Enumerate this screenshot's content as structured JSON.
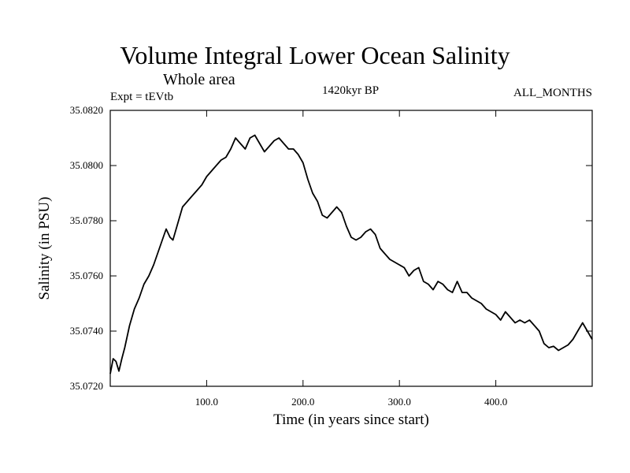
{
  "header": {
    "title": "Volume Integral Lower Ocean Salinity",
    "subtitle": "Whole area",
    "experiment": "Expt = tEVtb",
    "period": "1420kyr BP",
    "season": "ALL_MONTHS"
  },
  "chart_data": {
    "type": "line",
    "title": "Volume Integral Lower Ocean Salinity",
    "xlabel": "Time (in years since start)",
    "ylabel": "Salinity (in PSU)",
    "xlim": [
      0,
      500
    ],
    "ylim": [
      35.072,
      35.082
    ],
    "x_ticks": [
      100,
      200,
      300,
      400
    ],
    "x_tick_labels": [
      "100.0",
      "200.0",
      "300.0",
      "400.0"
    ],
    "y_ticks": [
      35.072,
      35.074,
      35.076,
      35.078,
      35.08,
      35.082
    ],
    "y_tick_labels": [
      "35.0720",
      "35.0740",
      "35.0760",
      "35.0780",
      "35.0800",
      "35.0820"
    ],
    "grid": false,
    "series": [
      {
        "name": "Salinity",
        "x": [
          0,
          3,
          6,
          9,
          12,
          15,
          20,
          25,
          30,
          35,
          40,
          45,
          50,
          55,
          58,
          62,
          65,
          70,
          75,
          80,
          85,
          90,
          95,
          100,
          105,
          110,
          115,
          120,
          125,
          130,
          135,
          140,
          145,
          150,
          155,
          160,
          165,
          170,
          175,
          180,
          185,
          190,
          195,
          200,
          205,
          210,
          215,
          220,
          225,
          230,
          235,
          240,
          245,
          250,
          255,
          260,
          265,
          270,
          275,
          280,
          285,
          290,
          295,
          300,
          305,
          310,
          315,
          320,
          325,
          330,
          335,
          340,
          345,
          350,
          355,
          360,
          365,
          370,
          375,
          380,
          385,
          390,
          395,
          400,
          405,
          410,
          415,
          420,
          425,
          430,
          435,
          440,
          445,
          450,
          455,
          460,
          465,
          470,
          475,
          480,
          485,
          490,
          495,
          500
        ],
        "values": [
          35.07245,
          35.073,
          35.0729,
          35.07255,
          35.073,
          35.0734,
          35.0742,
          35.0748,
          35.0752,
          35.0757,
          35.076,
          35.0764,
          35.0769,
          35.0774,
          35.0777,
          35.0774,
          35.0773,
          35.0779,
          35.0785,
          35.0787,
          35.0789,
          35.0791,
          35.0793,
          35.0796,
          35.0798,
          35.08,
          35.0802,
          35.0803,
          35.0806,
          35.081,
          35.0808,
          35.0806,
          35.081,
          35.0811,
          35.0808,
          35.0805,
          35.0807,
          35.0809,
          35.081,
          35.0808,
          35.0806,
          35.0806,
          35.0804,
          35.0801,
          35.0795,
          35.079,
          35.0787,
          35.0782,
          35.0781,
          35.0783,
          35.0785,
          35.0783,
          35.0778,
          35.0774,
          35.0773,
          35.0774,
          35.0776,
          35.0777,
          35.0775,
          35.077,
          35.0768,
          35.0766,
          35.0765,
          35.0764,
          35.0763,
          35.076,
          35.0762,
          35.0763,
          35.0758,
          35.0757,
          35.0755,
          35.0758,
          35.0757,
          35.0755,
          35.0754,
          35.0758,
          35.0754,
          35.0754,
          35.0752,
          35.0751,
          35.075,
          35.0748,
          35.0747,
          35.0746,
          35.0744,
          35.0747,
          35.0745,
          35.0743,
          35.0744,
          35.0743,
          35.0744,
          35.0742,
          35.074,
          35.07355,
          35.0734,
          35.07345,
          35.0733,
          35.0734,
          35.0735,
          35.0737,
          35.074,
          35.0743,
          35.074,
          35.0737
        ]
      }
    ]
  }
}
